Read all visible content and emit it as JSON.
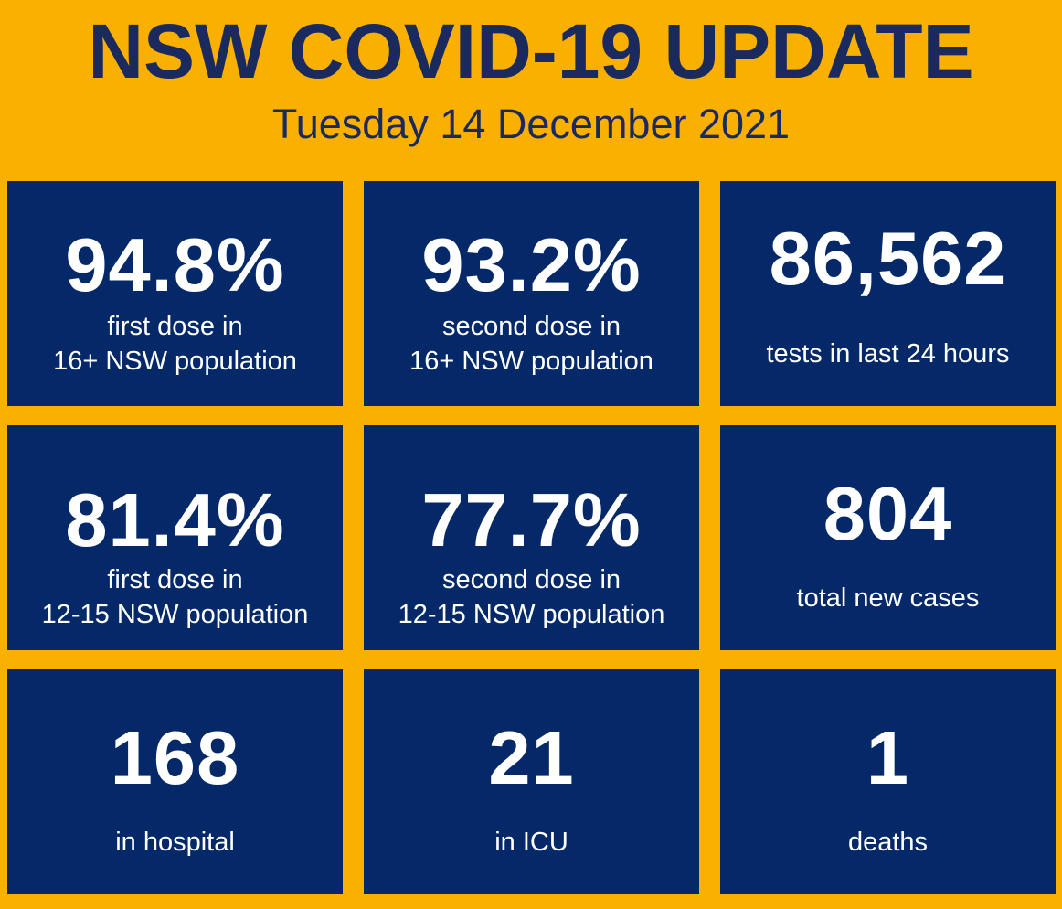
{
  "header": {
    "title": "NSW COVID-19 UPDATE",
    "date": "Tuesday 14 December 2021"
  },
  "colors": {
    "background": "#F9B000",
    "tile": "#052968",
    "title_text": "#1B2A5E",
    "tile_text": "#FFFFFF"
  },
  "tiles": [
    {
      "value": "94.8%",
      "label_lines": [
        "first dose in",
        "16+ NSW population"
      ]
    },
    {
      "value": "93.2%",
      "label_lines": [
        "second dose in",
        "16+ NSW population"
      ]
    },
    {
      "value": "86,562",
      "label_lines": [
        "tests in last 24 hours"
      ]
    },
    {
      "value": "81.4%",
      "label_lines": [
        "first dose in",
        "12-15 NSW population"
      ]
    },
    {
      "value": "77.7%",
      "label_lines": [
        "second dose in",
        "12-15 NSW population"
      ]
    },
    {
      "value": "804",
      "label_lines": [
        "total new cases"
      ]
    },
    {
      "value": "168",
      "label_lines": [
        "in hospital"
      ]
    },
    {
      "value": "21",
      "label_lines": [
        "in ICU"
      ]
    },
    {
      "value": "1",
      "label_lines": [
        "deaths"
      ]
    }
  ]
}
